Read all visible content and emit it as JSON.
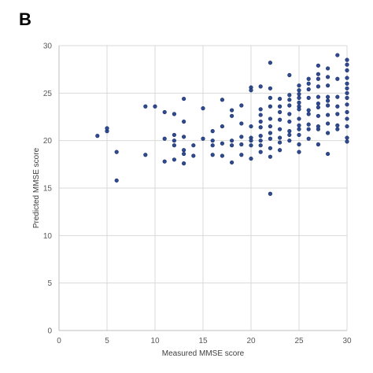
{
  "panel_label": "B",
  "chart_data": {
    "type": "scatter",
    "xlabel": "Measured MMSE score",
    "ylabel": "Predicted MMSE score",
    "xlim": [
      0,
      30
    ],
    "ylim": [
      0,
      30
    ],
    "xticks": [
      0,
      5,
      10,
      15,
      20,
      25,
      30
    ],
    "yticks": [
      0,
      5,
      10,
      15,
      20,
      25,
      30
    ],
    "grid": true,
    "legend": "none",
    "marker_color": "#2f4a8f",
    "marker_edge": "#1a2f66",
    "gridline_color": "#d9d9d9",
    "axis_color": "#bfbfbf",
    "points": [
      [
        4,
        20.5
      ],
      [
        5,
        21
      ],
      [
        5,
        21.3
      ],
      [
        6,
        18.8
      ],
      [
        6,
        15.8
      ],
      [
        9,
        18.5
      ],
      [
        9,
        23.6
      ],
      [
        10,
        23.6
      ],
      [
        11,
        23
      ],
      [
        11,
        20.2
      ],
      [
        11,
        17.8
      ],
      [
        12,
        20.6
      ],
      [
        12,
        20
      ],
      [
        12,
        19.5
      ],
      [
        12,
        18
      ],
      [
        12,
        22.8
      ],
      [
        13,
        24.4
      ],
      [
        13,
        22
      ],
      [
        13,
        20.4
      ],
      [
        13,
        19
      ],
      [
        13,
        18.6
      ],
      [
        13,
        17.6
      ],
      [
        14,
        19.5
      ],
      [
        14,
        18.4
      ],
      [
        15,
        23.4
      ],
      [
        15,
        20.2
      ],
      [
        16,
        21
      ],
      [
        16,
        20
      ],
      [
        16,
        19.5
      ],
      [
        16,
        18.5
      ],
      [
        17,
        24.3
      ],
      [
        17,
        21.5
      ],
      [
        17,
        19.7
      ],
      [
        17,
        18.4
      ],
      [
        18,
        23.2
      ],
      [
        18,
        22.6
      ],
      [
        18,
        20
      ],
      [
        18,
        19.5
      ],
      [
        18,
        17.7
      ],
      [
        19,
        23.7
      ],
      [
        19,
        21.8
      ],
      [
        19,
        20.4
      ],
      [
        19,
        19.6
      ],
      [
        19,
        18.5
      ],
      [
        20,
        25.6
      ],
      [
        20,
        25.3
      ],
      [
        20,
        21.5
      ],
      [
        20,
        20.3
      ],
      [
        20,
        20
      ],
      [
        20,
        19.5
      ],
      [
        20,
        18.1
      ],
      [
        21,
        25.7
      ],
      [
        21,
        23.3
      ],
      [
        21,
        22.7
      ],
      [
        21,
        22
      ],
      [
        21,
        21.4
      ],
      [
        21,
        20.5
      ],
      [
        21,
        20
      ],
      [
        21,
        19.5
      ],
      [
        21,
        18.8
      ],
      [
        22,
        28.2
      ],
      [
        22,
        25.5
      ],
      [
        22,
        24.5
      ],
      [
        22,
        23.6
      ],
      [
        22,
        22.3
      ],
      [
        22,
        21.5
      ],
      [
        22,
        20.8
      ],
      [
        22,
        20.2
      ],
      [
        22,
        19.2
      ],
      [
        22,
        18.3
      ],
      [
        22,
        14.4
      ],
      [
        23,
        24.4
      ],
      [
        23,
        23.6
      ],
      [
        23,
        23
      ],
      [
        23,
        22.2
      ],
      [
        23,
        21.2
      ],
      [
        23,
        20.3
      ],
      [
        23,
        19.8
      ],
      [
        23,
        19
      ],
      [
        24,
        26.9
      ],
      [
        24,
        24.8
      ],
      [
        24,
        24.3
      ],
      [
        24,
        23.7
      ],
      [
        24,
        22.8
      ],
      [
        24,
        22
      ],
      [
        24,
        21
      ],
      [
        24,
        20.6
      ],
      [
        24,
        20
      ],
      [
        25,
        25.8
      ],
      [
        25,
        25.3
      ],
      [
        25,
        24.9
      ],
      [
        25,
        24.5
      ],
      [
        25,
        24
      ],
      [
        25,
        23.6
      ],
      [
        25,
        23.3
      ],
      [
        25,
        22.3
      ],
      [
        25,
        21.6
      ],
      [
        25,
        21.2
      ],
      [
        25,
        20.6
      ],
      [
        25,
        19.6
      ],
      [
        25,
        18.8
      ],
      [
        26,
        26.5
      ],
      [
        26,
        26
      ],
      [
        26,
        25.4
      ],
      [
        26,
        24.5
      ],
      [
        26,
        23.2
      ],
      [
        26,
        22.8
      ],
      [
        26,
        21.7
      ],
      [
        26,
        21.2
      ],
      [
        26,
        20.2
      ],
      [
        27,
        27.9
      ],
      [
        27,
        27
      ],
      [
        27,
        26.5
      ],
      [
        27,
        25.7
      ],
      [
        27,
        24.6
      ],
      [
        27,
        23.9
      ],
      [
        27,
        23.5
      ],
      [
        27,
        22.6
      ],
      [
        27,
        21.5
      ],
      [
        27,
        21.2
      ],
      [
        27,
        19.6
      ],
      [
        28,
        27.6
      ],
      [
        28,
        26.7
      ],
      [
        28,
        25.8
      ],
      [
        28,
        24.6
      ],
      [
        28,
        24.2
      ],
      [
        28,
        23.7
      ],
      [
        28,
        22.7
      ],
      [
        28,
        21.8
      ],
      [
        28,
        20.8
      ],
      [
        28,
        18.6
      ],
      [
        29,
        29
      ],
      [
        29,
        26.5
      ],
      [
        29,
        24.6
      ],
      [
        29,
        23.6
      ],
      [
        29,
        22.8
      ],
      [
        29,
        21.6
      ],
      [
        29,
        21.2
      ],
      [
        30,
        28.5
      ],
      [
        30,
        28
      ],
      [
        30,
        27.4
      ],
      [
        30,
        26.6
      ],
      [
        30,
        26
      ],
      [
        30,
        25.5
      ],
      [
        30,
        25
      ],
      [
        30,
        24.5
      ],
      [
        30,
        23.8
      ],
      [
        30,
        23
      ],
      [
        30,
        22.3
      ],
      [
        30,
        21.5
      ],
      [
        30,
        20.3
      ],
      [
        30,
        19.9
      ]
    ]
  }
}
